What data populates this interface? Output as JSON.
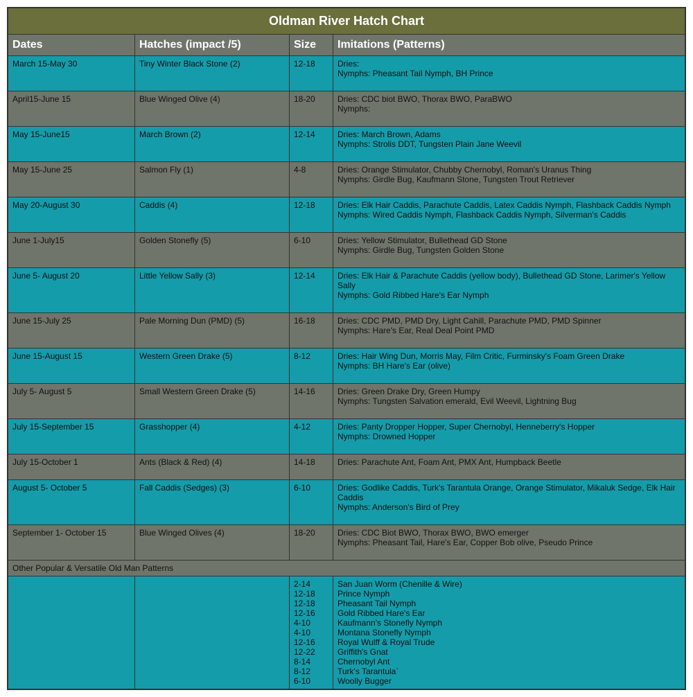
{
  "title": "Oldman River Hatch Chart",
  "headers": {
    "dates": "Dates",
    "hatches": "Hatches (impact /5)",
    "size": "Size",
    "imitations": "Imitations (Patterns)"
  },
  "colors": {
    "title_bg": "#6a6f3c",
    "header_bg": "#6f756b",
    "odd_bg": "#159caa",
    "even_bg": "#6f756b",
    "border": "#333333",
    "text": "#111111",
    "title_text": "#ffffff"
  },
  "rows": [
    {
      "dates": "March 15-May 30",
      "hatch": "Tiny Winter Black Stone (2)",
      "size": "12-18",
      "dries": "Dries:",
      "nymphs": "Nymphs: Pheasant Tail Nymph, BH Prince"
    },
    {
      "dates": "April15-June 15",
      "hatch": "Blue Winged Olive (4)",
      "size": "18-20",
      "dries": "Dries: CDC biot BWO, Thorax BWO,  ParaBWO",
      "nymphs": "Nymphs:"
    },
    {
      "dates": "May 15-June15",
      "hatch": "March Brown (2)",
      "size": "12-14",
      "dries": "Dries: March Brown, Adams",
      "nymphs": "Nymphs: Strolis DDT, Tungsten Plain Jane Weevil"
    },
    {
      "dates": "May 15-June 25",
      "hatch": "Salmon Fly (1)",
      "size": "4-8",
      "dries": "Dries: Orange Stimulator, Chubby Chernobyl, Roman's Uranus Thing",
      "nymphs": "Nymphs: Girdle Bug, Kaufmann Stone, Tungsten Trout Retriever"
    },
    {
      "dates": "May 20-August 30",
      "hatch": "Caddis (4)",
      "size": "12-18",
      "dries": "Dries: Elk Hair Caddis, Parachute Caddis, Latex Caddis Nymph, Flashback Caddis Nymph",
      "nymphs": "Nymphs: Wired Caddis Nymph, Flashback Caddis Nymph, Silverman's Caddis"
    },
    {
      "dates": "June 1-July15",
      "hatch": "Golden Stonefly (5)",
      "size": "6-10",
      "dries": "Dries: Yellow Stimulator, Bullethead GD Stone",
      "nymphs": "Nymphs: Girdle Bug, Tungsten Golden Stone"
    },
    {
      "dates": "June 5- August 20",
      "hatch": "Little Yellow Sally (3)",
      "size": "12-14",
      "dries": "Dries: Elk Hair & Parachute Caddis (yellow body), Bullethead GD Stone, Larimer's Yellow Sally",
      "nymphs": "Nymphs: Gold Ribbed Hare's Ear Nymph"
    },
    {
      "dates": "June 15-July 25",
      "hatch": "Pale Morning Dun (PMD) (5)",
      "size": "16-18",
      "dries": "Dries: CDC PMD, PMD Dry, Light Cahill, Parachute PMD, PMD Spinner",
      "nymphs": "Nymphs: Hare's Ear, Real Deal Point PMD"
    },
    {
      "dates": "June 15-August 15",
      "hatch": "Western Green Drake (5)",
      "size": "8-12",
      "dries": "Dries: Hair Wing Dun, Morris May, Film Critic, Furminsky's Foam Green Drake",
      "nymphs": "Nymphs: BH Hare's Ear (olive)"
    },
    {
      "dates": "July 5- August 5",
      "hatch": "Small Western Green Drake (5)",
      "size": "14-16",
      "dries": "Dries: Green Drake Dry, Green Humpy",
      "nymphs": "Nymphs: Tungsten Salvation emerald, Evil Weevil, Lightning Bug"
    },
    {
      "dates": "July 15-September 15",
      "hatch": "Grasshopper (4)",
      "size": "4-12",
      "dries": "Dries: Panty Dropper Hopper,  Super Chernobyl, Henneberry's Hopper",
      "nymphs": "Nymphs: Drowned Hopper"
    },
    {
      "dates": "July 15-October 1",
      "hatch": "Ants (Black & Red) (4)",
      "size": "14-18",
      "dries": "Dries: Parachute Ant, Foam Ant, PMX Ant, Humpback Beetle",
      "nymphs": ""
    },
    {
      "dates": "August 5- October 5",
      "hatch": "Fall Caddis (Sedges) (3)",
      "size": "6-10",
      "dries": "Dries: Godlike Caddis, Turk's Tarantula Orange, Orange Stimulator, Mikaluk Sedge, Elk Hair Caddis",
      "nymphs": "Nymphs: Anderson's Bird of Prey"
    },
    {
      "dates": "September 1- October 15",
      "hatch": "Blue Winged Olives (4)",
      "size": "18-20",
      "dries": "Dries: CDC Biot BWO, Thorax BWO, BWO emerger",
      "nymphs": "Nymphs: Pheasant Tail, Hare's Ear, Copper Bob olive, Pseudo Prince"
    }
  ],
  "other_label": "Other Popular & Versatile Old Man Patterns",
  "versatile": [
    {
      "size": "2-14",
      "pattern": "San Juan Worm (Chenille & Wire)"
    },
    {
      "size": "12-18",
      "pattern": "Prince Nymph"
    },
    {
      "size": "12-18",
      "pattern": "Pheasant Tail Nymph"
    },
    {
      "size": "12-16",
      "pattern": "Gold Ribbed Hare's Ear"
    },
    {
      "size": "4-10",
      "pattern": "Kaufmann's Stonefly Nymph"
    },
    {
      "size": "4-10",
      "pattern": "Montana Stonefly Nymph"
    },
    {
      "size": "12-16",
      "pattern": "Royal Wulff & Royal Trude"
    },
    {
      "size": "12-22",
      "pattern": "Griffith's Gnat"
    },
    {
      "size": "8-14",
      "pattern": "Chernobyl Ant"
    },
    {
      "size": "8-12",
      "pattern": "Turk's Tarantula`"
    },
    {
      "size": "6-10",
      "pattern": "Woolly Bugger"
    }
  ]
}
